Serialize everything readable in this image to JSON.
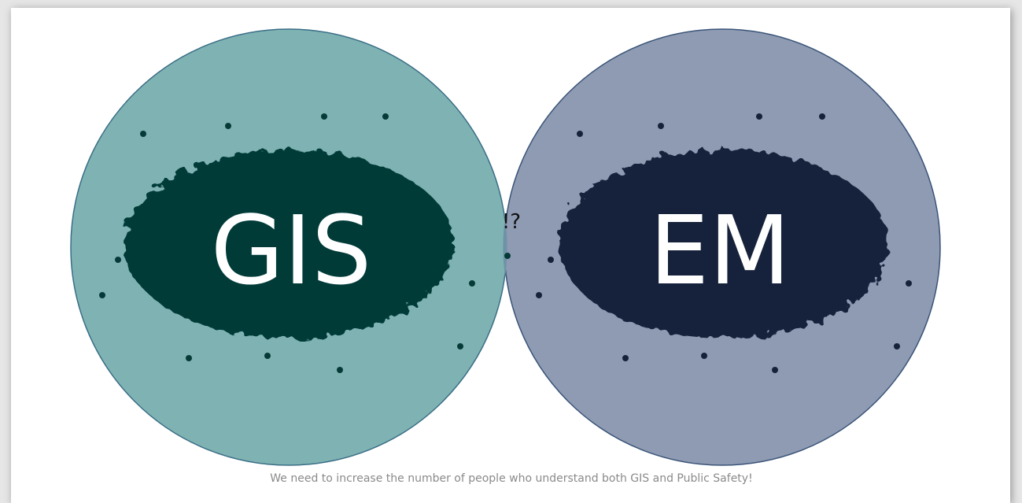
{
  "circles": [
    {
      "label": "GIS"
    },
    {
      "label": "EM"
    }
  ],
  "overlap_label": "!?",
  "caption": "We need to increase the number of people who understand both GIS and Public Safety!"
}
